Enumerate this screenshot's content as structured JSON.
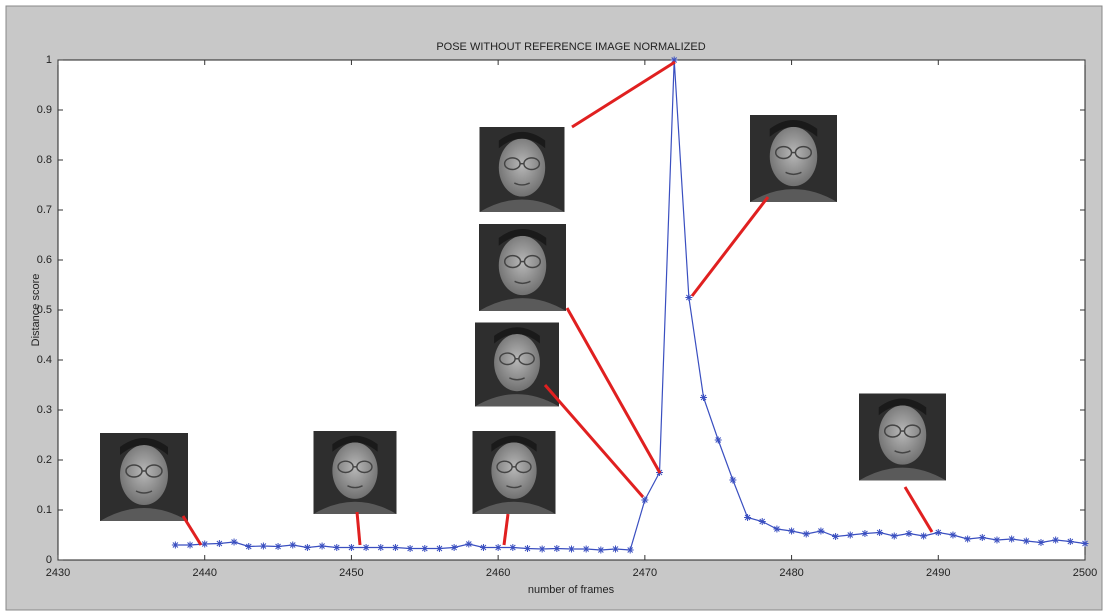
{
  "chart_data": {
    "type": "line",
    "title": "POSE WITHOUT REFERENCE IMAGE NORMALIZED",
    "x_label": "number of frames",
    "y_label": "Distance score",
    "x": [
      2438,
      2439,
      2440,
      2441,
      2442,
      2443,
      2444,
      2445,
      2446,
      2447,
      2448,
      2449,
      2450,
      2451,
      2452,
      2453,
      2454,
      2455,
      2456,
      2457,
      2458,
      2459,
      2460,
      2461,
      2462,
      2463,
      2464,
      2465,
      2466,
      2467,
      2468,
      2469,
      2470,
      2471,
      2472,
      2473,
      2474,
      2475,
      2476,
      2477,
      2478,
      2479,
      2480,
      2481,
      2482,
      2483,
      2484,
      2485,
      2486,
      2487,
      2488,
      2489,
      2490,
      2491,
      2492,
      2493,
      2494,
      2495,
      2496,
      2497,
      2498,
      2499,
      2500
    ],
    "series": [
      {
        "color": "#3a4fc0",
        "values": [
          0.03,
          0.03,
          0.032,
          0.033,
          0.036,
          0.027,
          0.028,
          0.027,
          0.03,
          0.025,
          0.028,
          0.025,
          0.025,
          0.025,
          0.025,
          0.025,
          0.023,
          0.023,
          0.023,
          0.025,
          0.032,
          0.025,
          0.025,
          0.025,
          0.023,
          0.022,
          0.023,
          0.022,
          0.022,
          0.02,
          0.022,
          0.02,
          0.12,
          0.175,
          1.0,
          0.525,
          0.325,
          0.24,
          0.16,
          0.085,
          0.077,
          0.062,
          0.058,
          0.052,
          0.058,
          0.047,
          0.05,
          0.053,
          0.055,
          0.048,
          0.053,
          0.048,
          0.055,
          0.05,
          0.042,
          0.045,
          0.04,
          0.042,
          0.038,
          0.035,
          0.04,
          0.037,
          0.033
        ]
      }
    ],
    "xlim": [
      2430,
      2500
    ],
    "xticks": [
      2430,
      2440,
      2450,
      2460,
      2470,
      2480,
      2490,
      2500
    ],
    "ylim": [
      0,
      1
    ],
    "yticks": [
      0,
      0.1,
      0.2,
      0.3,
      0.4,
      0.5,
      0.6,
      0.7,
      0.8,
      0.9,
      1
    ]
  }
}
